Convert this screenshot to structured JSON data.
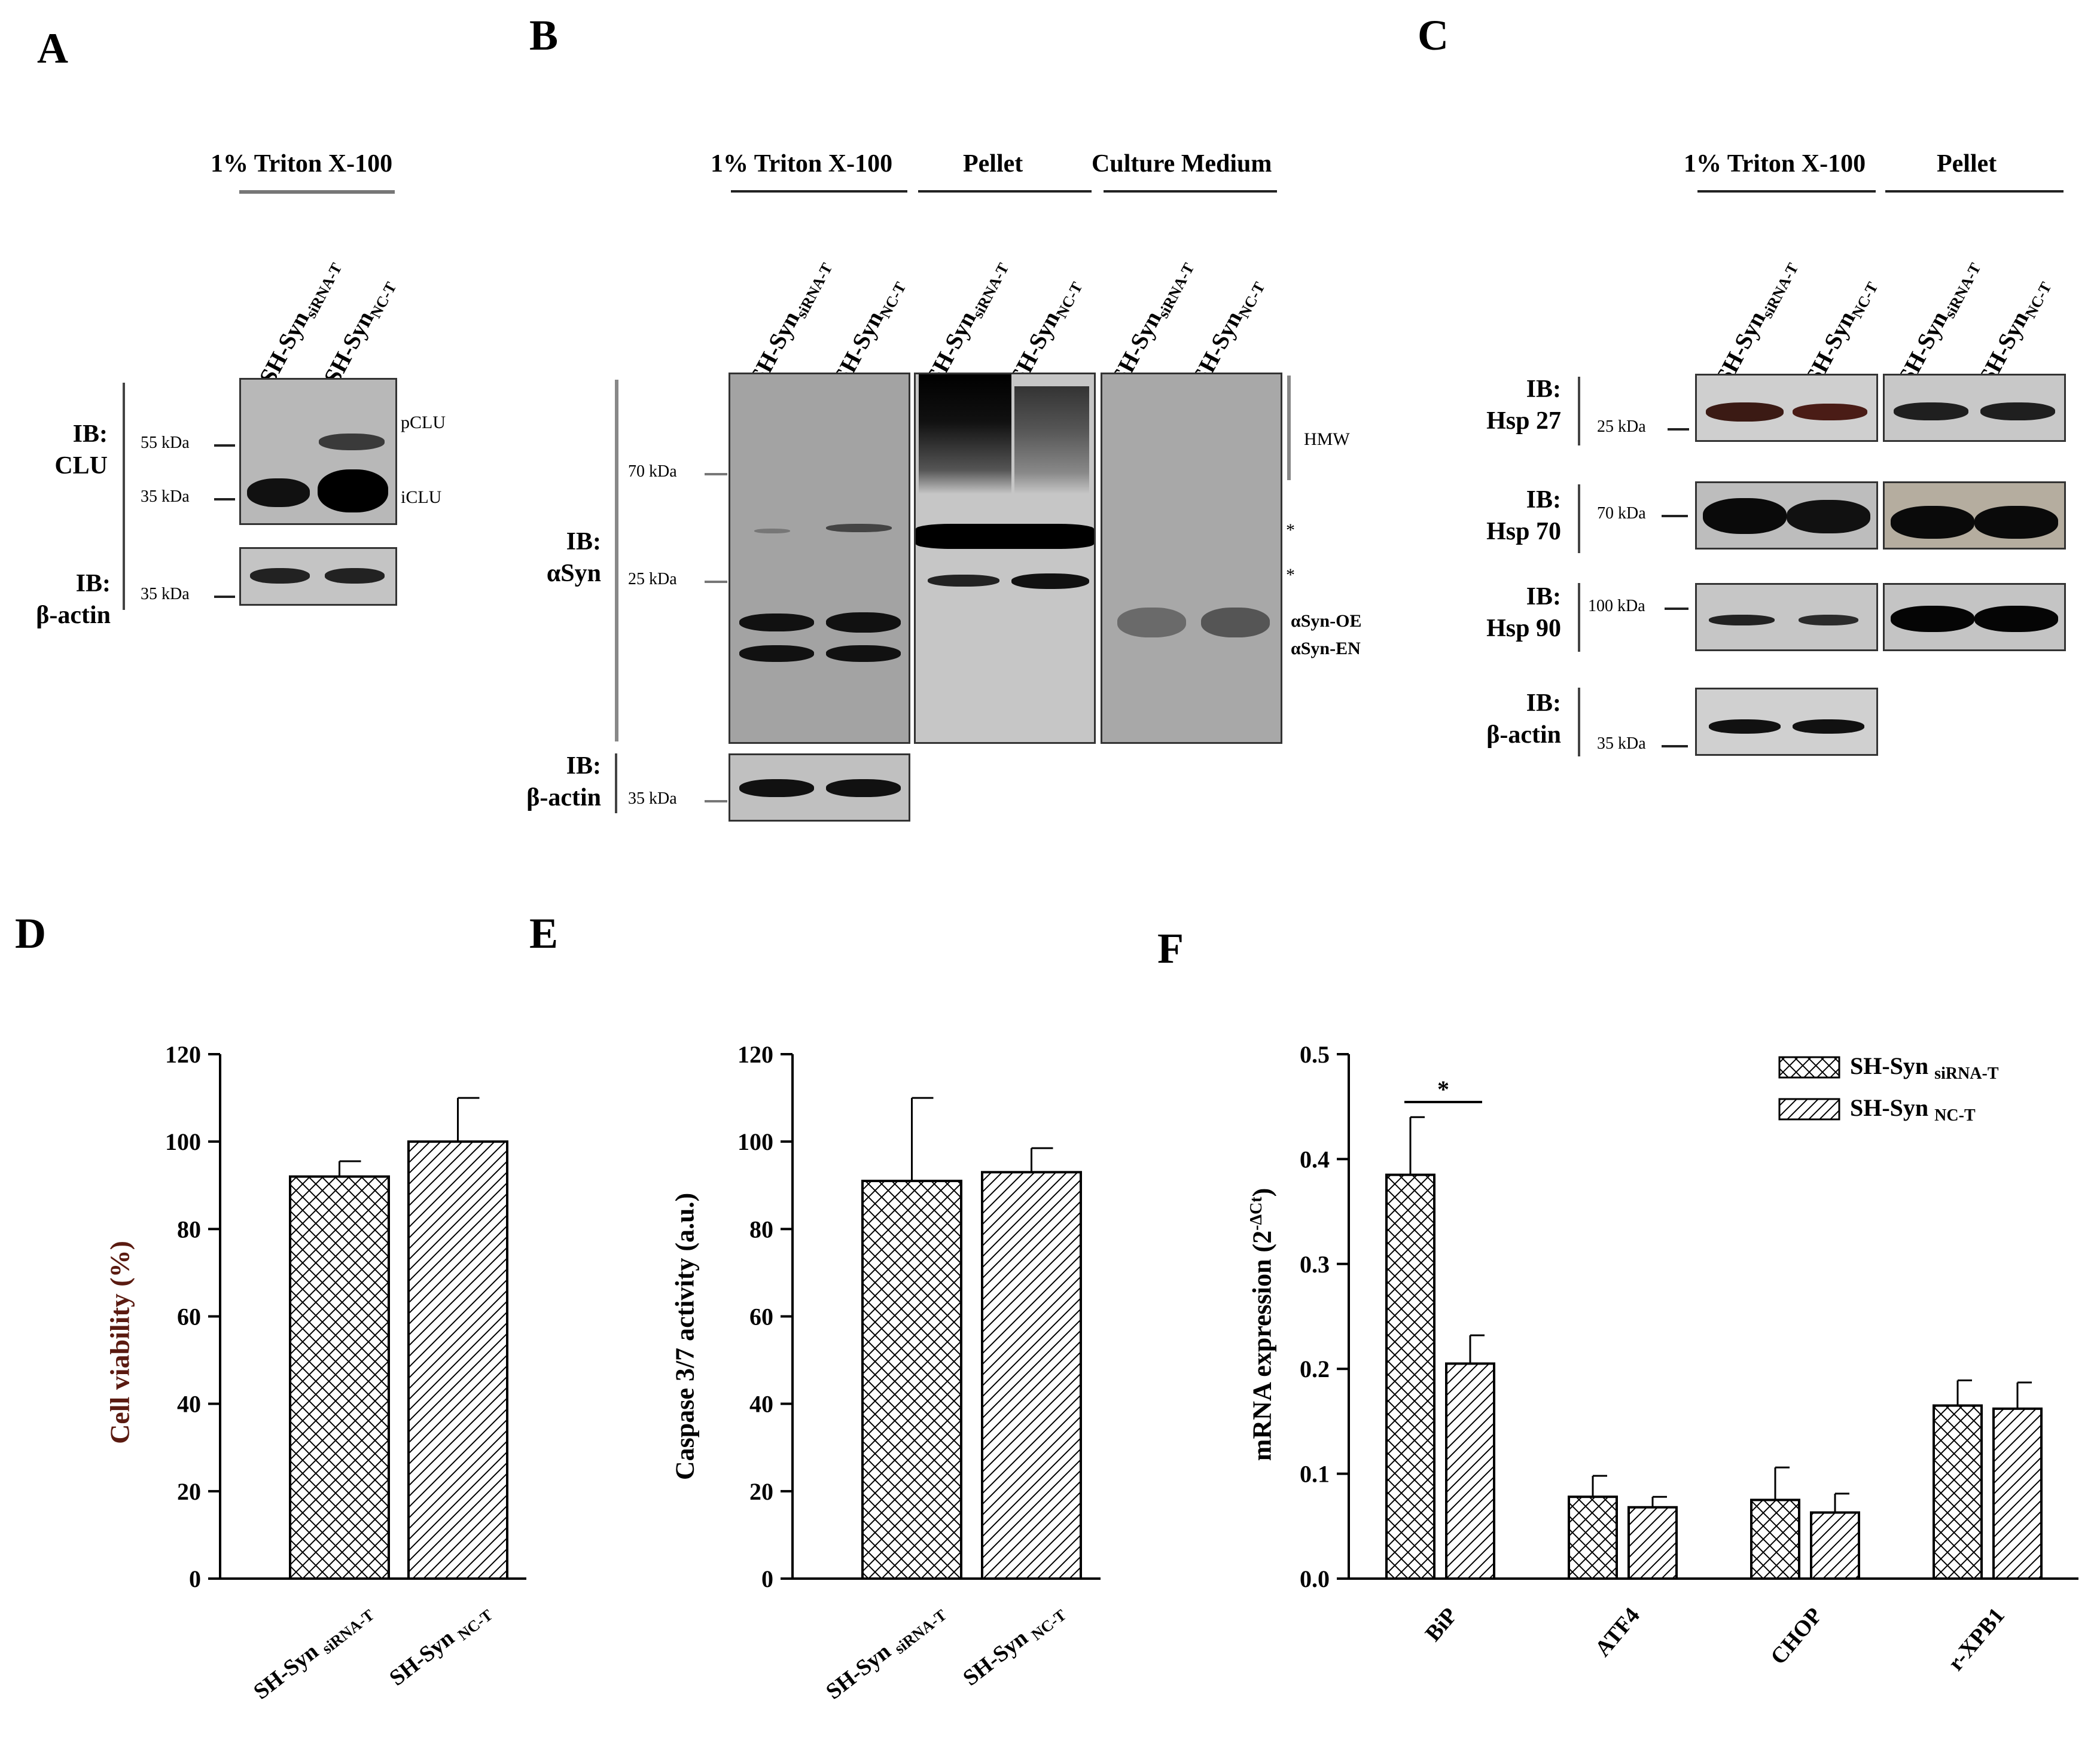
{
  "panels": {
    "a": "A",
    "b": "B",
    "c": "C",
    "d": "D",
    "e": "E",
    "f": "F"
  },
  "blot_a": {
    "header": "1% Triton X-100",
    "lanes": [
      {
        "base": "SH-Syn",
        "sub": "siRNA-T"
      },
      {
        "base": "SH-Syn",
        "sub": "NC-T"
      }
    ],
    "ib1": [
      "IB:",
      "CLU"
    ],
    "ib2": [
      "IB:",
      "β-actin"
    ],
    "mw": [
      "55 kDa",
      "35 kDa",
      "35 kDa"
    ],
    "bands": [
      "pCLU",
      "iCLU"
    ]
  },
  "blot_b": {
    "headers": [
      "1% Triton X-100",
      "Pellet",
      "Culture Medium"
    ],
    "lanes": [
      {
        "base": "SH-Syn",
        "sub": "siRNA-T"
      },
      {
        "base": "SH-Syn",
        "sub": "NC-T"
      },
      {
        "base": "SH-Syn",
        "sub": "siRNA-T"
      },
      {
        "base": "SH-Syn",
        "sub": "NC-T"
      },
      {
        "base": "SH-Syn",
        "sub": "siRNA-T"
      },
      {
        "base": "SH-Syn",
        "sub": "NC-T"
      }
    ],
    "ib1": [
      "IB:",
      "αSyn"
    ],
    "ib2": [
      "IB:",
      "β-actin"
    ],
    "mw": [
      "70 kDa",
      "25 kDa",
      "35 kDa"
    ],
    "notes": [
      "HMW",
      "*",
      "*",
      "αSyn-OE",
      "αSyn-EN"
    ]
  },
  "blot_c": {
    "headers": [
      "1% Triton X-100",
      "Pellet"
    ],
    "lanes": [
      {
        "base": "SH-Syn",
        "sub": "siRNA-T"
      },
      {
        "base": "SH-Syn",
        "sub": "NC-T"
      },
      {
        "base": "SH-Syn",
        "sub": "siRNA-T"
      },
      {
        "base": "SH-Syn",
        "sub": "NC-T"
      }
    ],
    "rows": [
      {
        "ib": [
          "IB:",
          "Hsp 27"
        ],
        "mw": "25 kDa"
      },
      {
        "ib": [
          "IB:",
          "Hsp 70"
        ],
        "mw": "70 kDa"
      },
      {
        "ib": [
          "IB:",
          "Hsp 90"
        ],
        "mw": "100 kDa"
      },
      {
        "ib": [
          "IB:",
          "β-actin"
        ],
        "mw": "35 kDa"
      }
    ]
  },
  "chart_data": [
    {
      "type": "bar",
      "title": "",
      "categories": [
        "SH-Syn siRNA-T",
        "SH-Syn NC-T"
      ],
      "values": [
        92,
        100
      ],
      "errors": [
        3.5,
        10
      ],
      "ylabel": "Cell viability (%)",
      "ylim": [
        0,
        120
      ],
      "yticks": [
        "0",
        "20",
        "40",
        "60",
        "80",
        "100",
        "120"
      ]
    },
    {
      "type": "bar",
      "title": "",
      "categories": [
        "SH-Syn siRNA-T",
        "SH-Syn NC-T"
      ],
      "values": [
        91,
        93
      ],
      "errors": [
        19,
        5.5
      ],
      "ylabel": "Caspase 3/7 activity (a.u.)",
      "ylim": [
        0,
        120
      ],
      "yticks": [
        "0",
        "20",
        "40",
        "60",
        "80",
        "100",
        "120"
      ]
    },
    {
      "type": "bar",
      "title": "",
      "categories": [
        "BiP",
        "ATF4",
        "CHOP",
        "r-XPB1"
      ],
      "series": [
        {
          "name": "SH-Syn siRNA-T",
          "values": [
            0.385,
            0.078,
            0.075,
            0.165
          ],
          "errors": [
            0.055,
            0.02,
            0.031,
            0.024
          ]
        },
        {
          "name": "SH-Syn NC-T",
          "values": [
            0.205,
            0.068,
            0.063,
            0.162
          ],
          "errors": [
            0.027,
            0.01,
            0.018,
            0.025
          ]
        }
      ],
      "ylabel": "mRNA expression (2^-ΔCt)",
      "ylabel_base": "mRNA expression (2",
      "ylabel_sup": "-ΔCt",
      "ylabel_end": ")",
      "ylim": [
        0,
        0.5
      ],
      "yticks": [
        "0.0",
        "0.1",
        "0.2",
        "0.3",
        "0.4",
        "0.5"
      ],
      "significance": "*",
      "legend": [
        {
          "base": "SH-Syn",
          "sub": "siRNA-T"
        },
        {
          "base": "SH-Syn",
          "sub": "NC-T"
        }
      ]
    }
  ]
}
